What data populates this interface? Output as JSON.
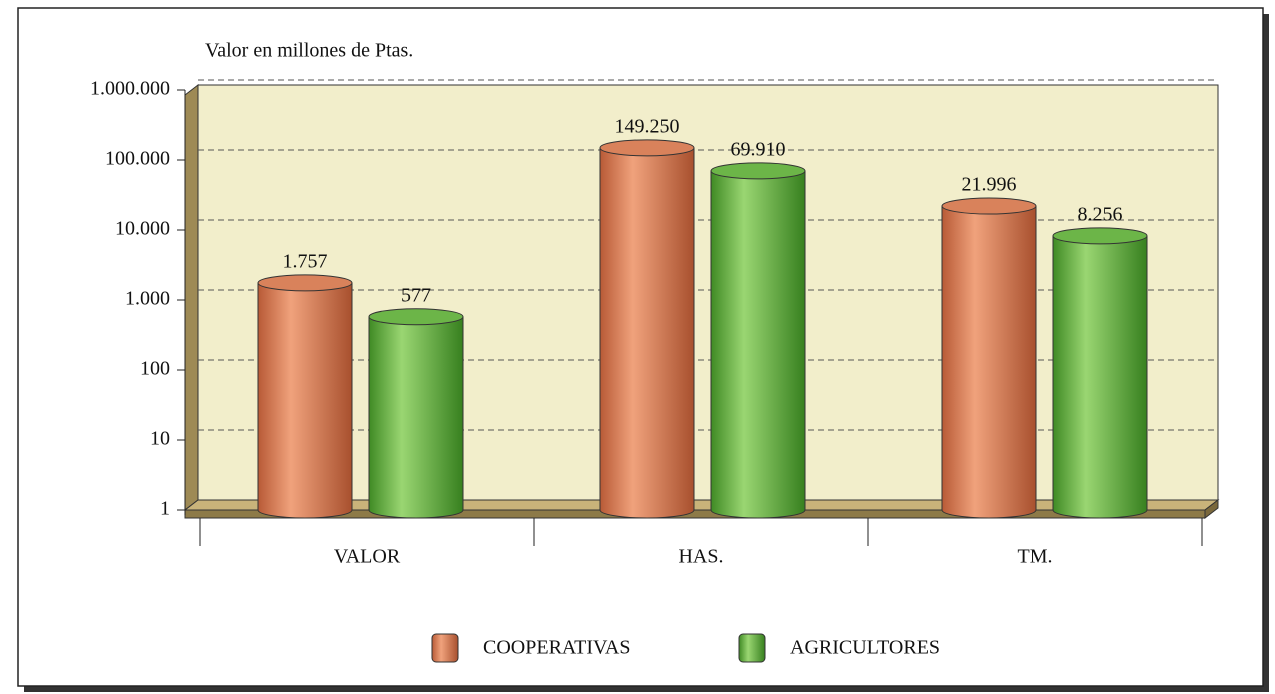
{
  "chart_data": {
    "type": "bar",
    "y_label": "Valor en millones de Ptas.",
    "categories": [
      "VALOR",
      "HAS.",
      "TM."
    ],
    "series": [
      {
        "name": "COOPERATIVAS",
        "color": "#d9825b",
        "values": [
          1757,
          149250,
          21996
        ],
        "value_labels": [
          "1.757",
          "149.250",
          "21.996"
        ]
      },
      {
        "name": "AGRICULTORES",
        "color": "#6cb548",
        "values": [
          577,
          69910,
          8256
        ],
        "value_labels": [
          "577",
          "69.910",
          "8.256"
        ]
      }
    ],
    "log_scale": true,
    "grid": true,
    "ylim": [
      1,
      1000000
    ],
    "yticks": [
      1,
      10,
      100,
      {
        "value": 1000,
        "label": "1.000"
      },
      {
        "value": 10000,
        "label": "10.000"
      },
      {
        "value": 100000,
        "label": "100.000"
      },
      {
        "value": 1000000,
        "label": "1.000.000"
      }
    ],
    "legend": "bottom"
  }
}
